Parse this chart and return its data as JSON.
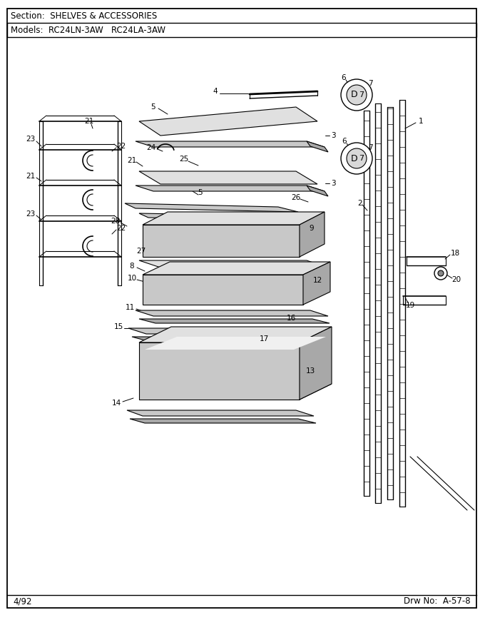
{
  "section_text": "Section:  SHELVES & ACCESSORIES",
  "models_text": "Models:  RC24LN-3AW   RC24LA-3AW",
  "footer_left": "4/92",
  "footer_right": "Drw No:  A-57-8",
  "bg_color": "#ffffff",
  "border_color": "#000000",
  "text_color": "#000000",
  "line_color": "#1a1a1a",
  "fill_light": "#e0e0e0",
  "fill_mid": "#c8c8c8",
  "fill_dark": "#a8a8a8"
}
